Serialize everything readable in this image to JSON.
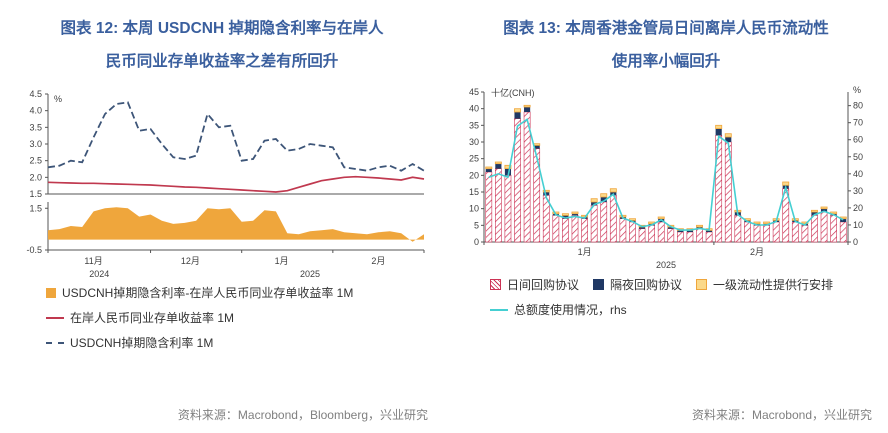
{
  "page": {
    "figures": [
      {
        "title_line1": "图表 12: 本周 USDCNH 掉期隐含利率与在岸人",
        "title_line2": "民币同业存单收益率之差有所回升",
        "source": "资料来源：Macrobond，Bloomberg，兴业研究"
      },
      {
        "title_line1": "图表 13: 本周香港金管局日间离岸人民币流动性",
        "title_line2": "使用率小幅回升",
        "source": "资料来源：Macrobond，兴业研究"
      }
    ],
    "colors": {
      "title_blue": "#3A5F9E",
      "source_gray": "#808080",
      "swap_rate_line": "#3d5578",
      "ncd_yield_line": "#c0394f",
      "spread_area": "#efa63c",
      "intraday_repo_bar": "#cc3355",
      "overnight_repo_bar": "#1f3864",
      "primary_liquidity_bar": "#efa63c",
      "usage_line": "#45cfd2"
    }
  },
  "chart_data": [
    {
      "type": "line",
      "title": "本周USDCNH掉期隐含利率与在岸人民币同业存单收益率之差有所回升",
      "unit": "%",
      "top_panel": {
        "ylim": [
          1.5,
          4.5
        ],
        "yticks": [
          4.5,
          4.0,
          3.5,
          3.0,
          2.5,
          2.0,
          1.5
        ]
      },
      "bottom_panel": {
        "ylim": [
          -0.5,
          1.8
        ],
        "yticks": [
          1.5,
          -0.5
        ]
      },
      "months": [
        {
          "label": "11月",
          "start": 0,
          "center": 4
        },
        {
          "label": "12月",
          "start": 9,
          "center": 12.5
        },
        {
          "label": "1月",
          "start": 17,
          "center": 20.5
        },
        {
          "label": "2月",
          "start": 25,
          "center": 29
        }
      ],
      "year_labels": [
        {
          "label": "2024",
          "center": 4.5
        },
        {
          "label": "2025",
          "center": 23
        }
      ],
      "series": [
        {
          "name": "USDCNH掉期隐含利率 1M",
          "style": "dashed",
          "color": "#3d5578",
          "panel": "top",
          "values": [
            2.3,
            2.35,
            2.5,
            2.45,
            3.2,
            3.9,
            4.2,
            4.25,
            3.4,
            3.45,
            3.0,
            2.6,
            2.55,
            2.65,
            3.9,
            3.5,
            3.55,
            2.5,
            2.55,
            3.1,
            3.15,
            2.8,
            2.85,
            3.0,
            2.95,
            2.9,
            2.3,
            2.25,
            2.2,
            2.3,
            2.35,
            2.2,
            2.4,
            2.2
          ]
        },
        {
          "name": "在岸人民币同业存单收益率 1M",
          "style": "solid",
          "color": "#c0394f",
          "panel": "top",
          "values": [
            1.85,
            1.84,
            1.83,
            1.82,
            1.82,
            1.81,
            1.8,
            1.79,
            1.78,
            1.77,
            1.75,
            1.73,
            1.71,
            1.7,
            1.68,
            1.66,
            1.64,
            1.62,
            1.6,
            1.58,
            1.56,
            1.6,
            1.7,
            1.8,
            1.9,
            1.95,
            2.0,
            2.02,
            2.0,
            1.98,
            1.95,
            1.92,
            2.0,
            1.95
          ]
        },
        {
          "name": "USDCNH掉期隐含利率-在岸人民币同业存单收益率 1M",
          "style": "area",
          "color": "#efa63c",
          "panel": "bottom",
          "values": [
            0.45,
            0.5,
            0.65,
            0.6,
            1.35,
            1.5,
            1.55,
            1.5,
            1.1,
            1.2,
            0.9,
            0.75,
            0.8,
            0.9,
            1.5,
            1.45,
            1.5,
            0.85,
            0.9,
            1.4,
            1.35,
            0.3,
            0.25,
            0.4,
            0.45,
            0.5,
            0.35,
            0.3,
            0.25,
            0.35,
            0.4,
            0.3,
            -0.1,
            0.25
          ]
        }
      ]
    },
    {
      "type": "bar",
      "title": "本周香港金管局日间离岸人民币流动性使用率小幅回升",
      "left_axis": {
        "label": "十亿(CNH)",
        "max": 45,
        "ticks": [
          45,
          40,
          35,
          30,
          25,
          20,
          15,
          10,
          5,
          0
        ]
      },
      "right_axis": {
        "label": "%",
        "max": 80,
        "plot_max": 88,
        "ticks": [
          80,
          70,
          60,
          50,
          40,
          30,
          20,
          10,
          0
        ]
      },
      "x_labels": [
        {
          "label": "1月",
          "index": 10
        },
        {
          "label": "2月",
          "index": 28
        }
      ],
      "year_label": "2025",
      "month_boundary": 24,
      "series": [
        {
          "name": "日间回购协议",
          "type": "bar",
          "color": "#cc3355",
          "pattern": "hatch",
          "values": [
            21,
            22,
            20,
            37,
            39,
            28,
            14,
            8,
            7,
            8,
            7,
            11,
            12,
            14,
            7,
            6,
            4,
            5,
            6,
            4,
            3,
            3,
            4,
            3,
            32,
            30,
            8,
            6,
            5,
            5,
            6,
            16,
            6,
            5,
            8,
            9,
            8,
            6
          ]
        },
        {
          "name": "隔夜回购协议",
          "type": "bar",
          "color": "#1f3864",
          "values": [
            1,
            1.5,
            2,
            2,
            1.5,
            1,
            1,
            0.5,
            1,
            0.5,
            0.5,
            1,
            1.5,
            1,
            0.5,
            0.5,
            0.5,
            0.5,
            1,
            0.5,
            0.5,
            0.5,
            0.5,
            0.5,
            2,
            1.5,
            1,
            0.5,
            0.5,
            0.5,
            0.5,
            1,
            0.5,
            0.5,
            1,
            1,
            0.5,
            1
          ]
        },
        {
          "name": "一级流动性提供行安排",
          "type": "bar",
          "color": "#efa63c",
          "fill": "#fbd98a",
          "values": [
            0.5,
            0.5,
            1,
            1,
            0.5,
            0.5,
            0.5,
            0.5,
            0.5,
            0.5,
            0.5,
            1,
            1,
            1,
            0.5,
            0.5,
            0.5,
            0.5,
            0.5,
            0.5,
            0.5,
            0.5,
            0.5,
            0.5,
            1,
            1,
            0.5,
            0.5,
            0.5,
            0.5,
            0.5,
            1,
            0.5,
            0.5,
            0.5,
            0.5,
            0.5,
            0.5
          ]
        },
        {
          "name": "总额度使用情况，rhs",
          "type": "line",
          "axis": "right",
          "color": "#45cfd2",
          "values": [
            38,
            40,
            38,
            68,
            72,
            50,
            26,
            16,
            14,
            15,
            14,
            22,
            24,
            28,
            14,
            12,
            9,
            10,
            13,
            9,
            7,
            7,
            8,
            7,
            62,
            58,
            16,
            12,
            10,
            10,
            12,
            32,
            12,
            10,
            16,
            18,
            16,
            13
          ]
        }
      ]
    }
  ]
}
